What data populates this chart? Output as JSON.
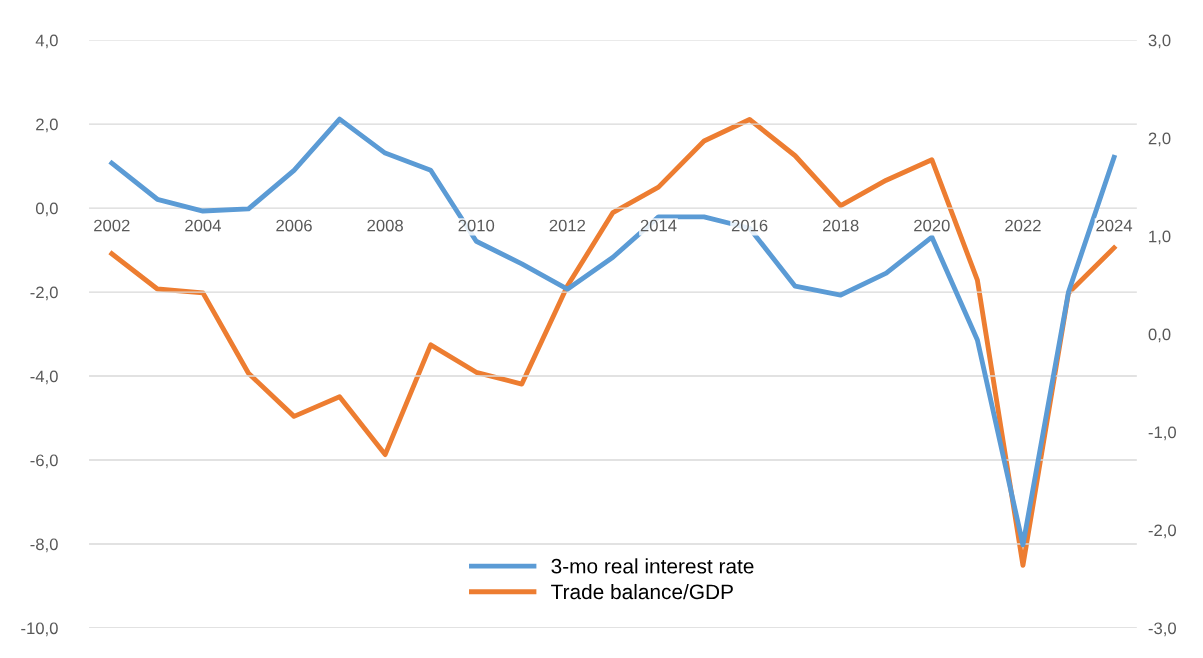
{
  "chart_data": {
    "type": "line",
    "categories": [
      "2002",
      null,
      "2004",
      null,
      "2006",
      null,
      "2008",
      null,
      "2010",
      null,
      "2012",
      null,
      "2014",
      null,
      "2016",
      null,
      "2018",
      null,
      "2020",
      null,
      "2022",
      null,
      "2024"
    ],
    "series": [
      {
        "name": "3-mo real interest rate",
        "color": "#5b9bd5",
        "values": [
          1.07,
          0.21,
          -0.07,
          -0.02,
          0.9,
          2.12,
          1.31,
          0.9,
          -0.79,
          -1.33,
          -1.93,
          -1.17,
          -0.21,
          -0.21,
          -0.48,
          -1.86,
          -2.07,
          -1.55,
          -0.69,
          -3.14,
          -8.02,
          -2.0,
          1.21
        ]
      },
      {
        "name": "Trade balance/GDP",
        "color": "#ed7d31",
        "axis": "y2",
        "values": [
          0.82,
          0.46,
          0.42,
          -0.4,
          -0.84,
          -0.64,
          -1.23,
          -0.11,
          -0.39,
          -0.51,
          0.49,
          1.24,
          1.5,
          1.97,
          2.19,
          1.82,
          1.31,
          1.57,
          1.78,
          0.55,
          -2.36,
          0.42,
          0.88
        ]
      }
    ],
    "ylim": [
      -10,
      4
    ],
    "yticks": [
      {
        "value": -10,
        "label": "-10,0"
      },
      {
        "value": -8,
        "label": "-8,0"
      },
      {
        "value": -6,
        "label": "-6,0"
      },
      {
        "value": -4,
        "label": "-4,0"
      },
      {
        "value": -2,
        "label": "-2,0"
      },
      {
        "value": 0,
        "label": "0,0"
      },
      {
        "value": 2,
        "label": "2,0"
      },
      {
        "value": 4,
        "label": "4,0"
      }
    ],
    "y2lim": [
      -3,
      3
    ],
    "y2ticks": [
      {
        "value": -3,
        "label": "-3,0"
      },
      {
        "value": -2,
        "label": "-2,0"
      },
      {
        "value": -1,
        "label": "-1,0"
      },
      {
        "value": 0,
        "label": "0,0"
      },
      {
        "value": 1,
        "label": "1,0"
      },
      {
        "value": 2,
        "label": "2,0"
      },
      {
        "value": 3,
        "label": "3,0"
      }
    ],
    "grid": "y",
    "legend": "bottom",
    "line_style": "solid",
    "marker": "none"
  }
}
